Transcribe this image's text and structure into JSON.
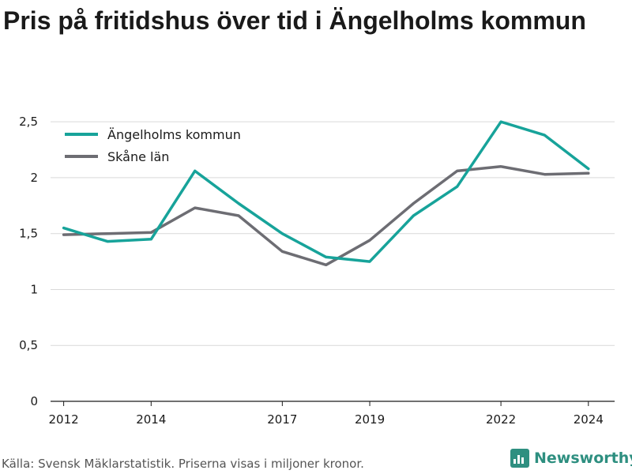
{
  "title": "Pris på fritidshus över tid i Ängelholms kommun",
  "footer": "Källa: Svensk Mäklarstatistik. Priserna visas i miljoner kronor.",
  "brand": {
    "name": "Newsworthy",
    "color": "#2e8f80",
    "icon": "bar-chart-logo-icon"
  },
  "chart_data": {
    "type": "line",
    "title": "Pris på fritidshus över tid i Ängelholms kommun",
    "xlabel": "",
    "ylabel": "",
    "x": [
      2012,
      2013,
      2014,
      2015,
      2016,
      2017,
      2018,
      2019,
      2020,
      2021,
      2022,
      2023,
      2024
    ],
    "x_ticks": [
      2012,
      2014,
      2017,
      2019,
      2022,
      2024
    ],
    "y_ticks": [
      0,
      0.5,
      1,
      1.5,
      2,
      2.5
    ],
    "y_tick_labels": [
      "0",
      "0,5",
      "1",
      "1,5",
      "2",
      "2,5"
    ],
    "ylim": [
      0,
      2.6
    ],
    "grid": true,
    "legend_position": "top-left",
    "series": [
      {
        "name": "Ängelholms kommun",
        "color": "#17a39a",
        "values": [
          1.55,
          1.43,
          1.45,
          2.06,
          1.77,
          1.5,
          1.29,
          1.25,
          1.66,
          1.92,
          2.5,
          2.38,
          2.08
        ]
      },
      {
        "name": "Skåne län",
        "color": "#6d6d73",
        "values": [
          1.49,
          1.5,
          1.51,
          1.73,
          1.66,
          1.34,
          1.22,
          1.44,
          1.77,
          2.06,
          2.1,
          2.03,
          2.04
        ]
      }
    ]
  }
}
